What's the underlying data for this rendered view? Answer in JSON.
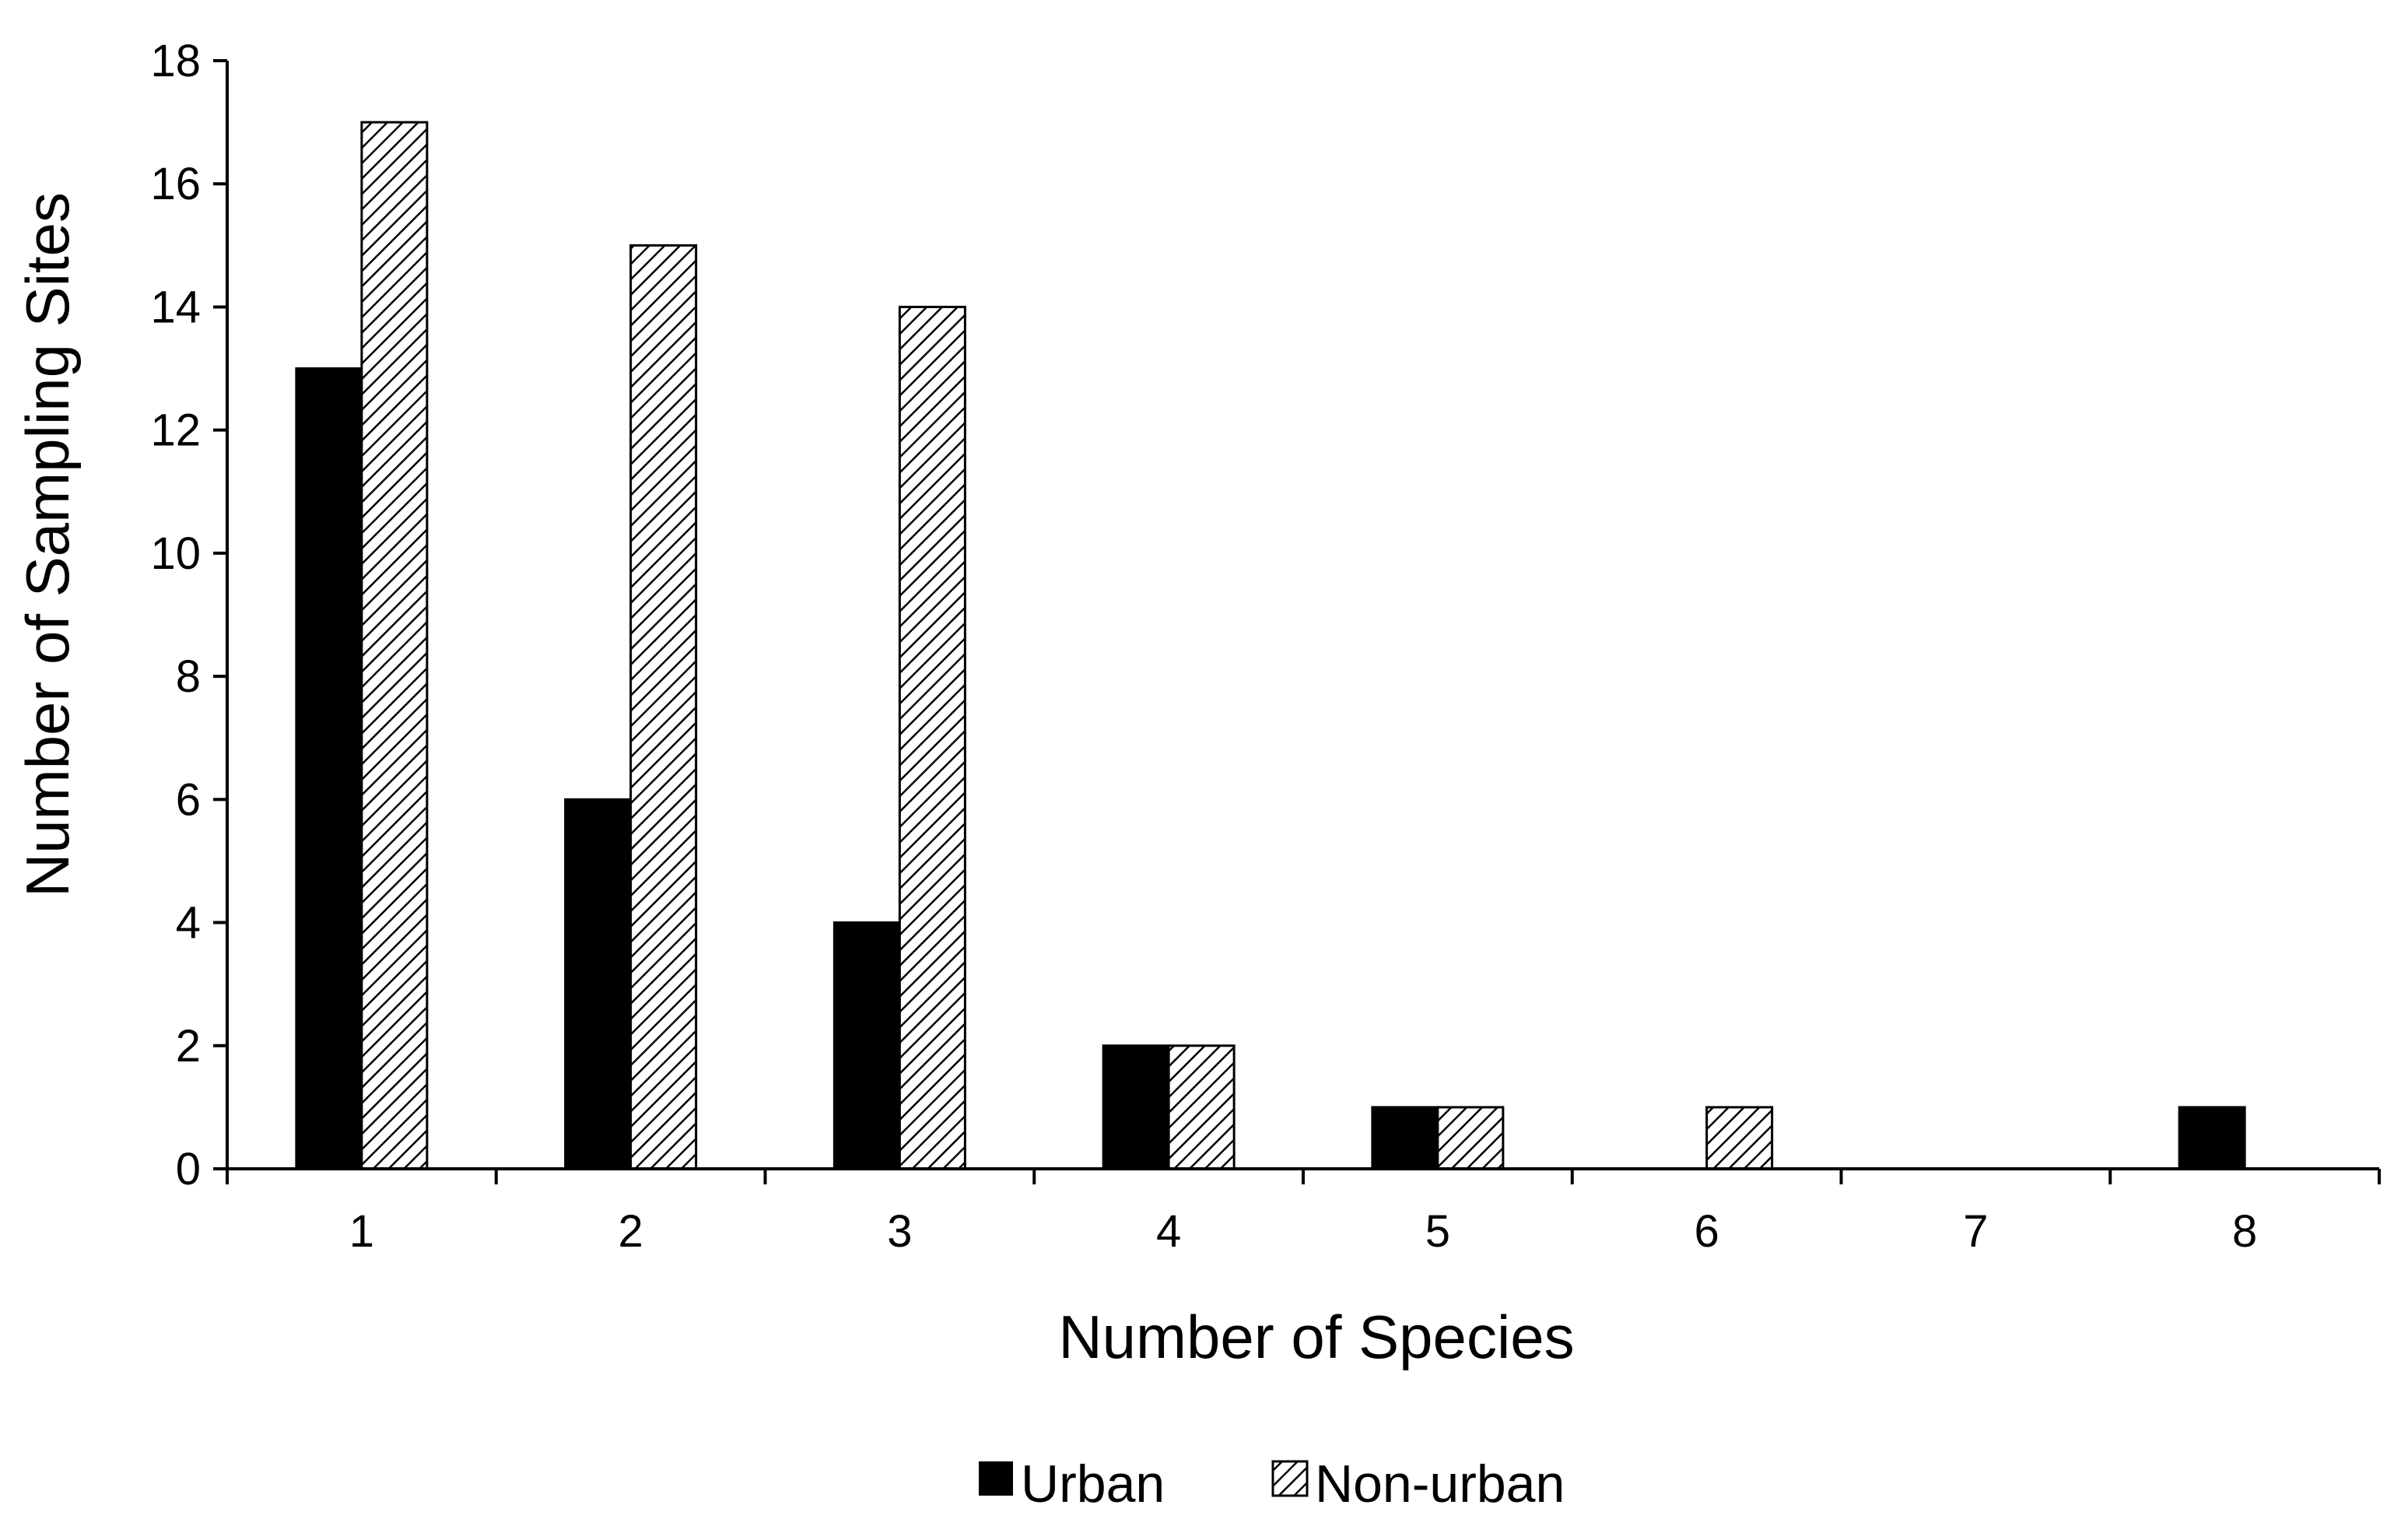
{
  "chart_data": {
    "type": "bar",
    "title": "",
    "xlabel": "Number of Species",
    "ylabel": "Number of Sampling Sites",
    "categories": [
      "1",
      "2",
      "3",
      "4",
      "5",
      "6",
      "7",
      "8"
    ],
    "series": [
      {
        "name": "Urban",
        "values": [
          13,
          6,
          4,
          2,
          1,
          0,
          0,
          1
        ],
        "fill": "solid",
        "color": "#000000"
      },
      {
        "name": "Non-urban",
        "values": [
          17,
          15,
          14,
          2,
          1,
          1,
          0,
          0
        ],
        "fill": "hatched",
        "color": "#000000"
      }
    ],
    "ylim": [
      0,
      18
    ],
    "yticks": [
      0,
      2,
      4,
      6,
      8,
      10,
      12,
      14,
      16,
      18
    ],
    "grid": false,
    "legend_position": "bottom-center"
  }
}
